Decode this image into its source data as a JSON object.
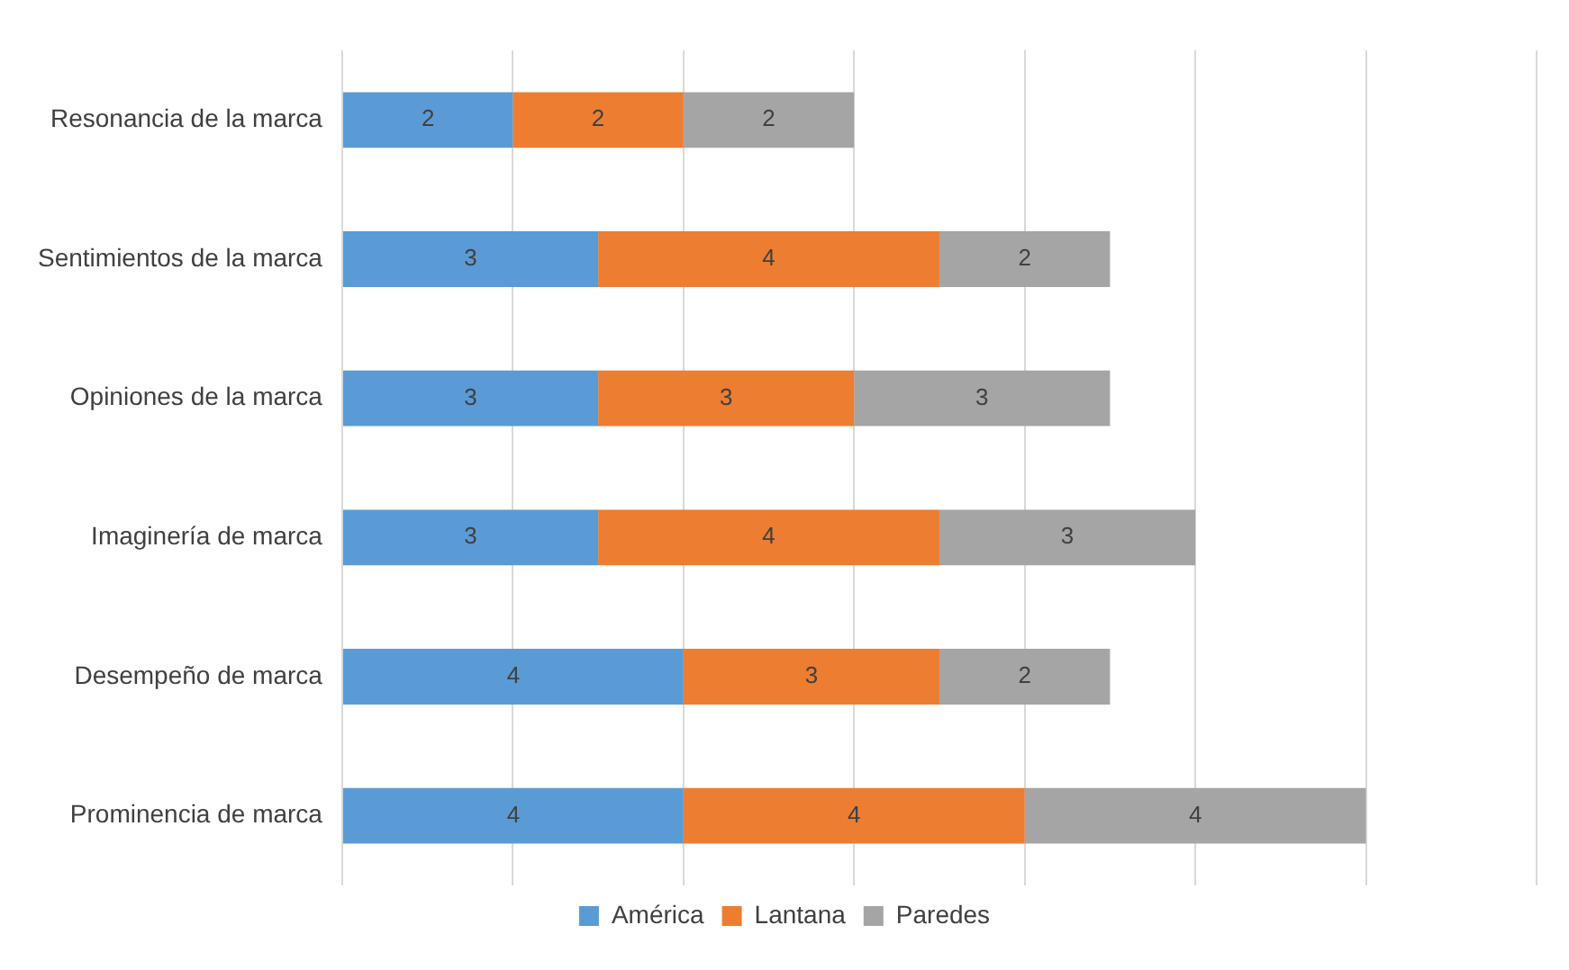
{
  "chart_data": {
    "type": "bar",
    "orientation": "horizontal",
    "stacked": true,
    "categories": [
      "Resonancia de la marca",
      "Sentimientos de la marca",
      "Opiniones de la marca",
      "Imaginería de marca",
      "Desempeño de marca",
      "Prominencia de marca"
    ],
    "series": [
      {
        "name": "América",
        "color": "#5b9bd5",
        "values": [
          2,
          3,
          3,
          3,
          4,
          4
        ]
      },
      {
        "name": "Lantana",
        "color": "#ed7d31",
        "values": [
          2,
          4,
          3,
          4,
          3,
          4
        ]
      },
      {
        "name": "Paredes",
        "color": "#a5a5a5",
        "values": [
          2,
          2,
          3,
          3,
          2,
          4
        ]
      }
    ],
    "xlim": [
      0,
      14
    ],
    "xticks": [
      {
        "value": 0,
        "label": null
      },
      {
        "value": 2,
        "label": null
      },
      {
        "value": 4,
        "label": null
      },
      {
        "value": 6,
        "label": null
      },
      {
        "value": 8,
        "label": null
      },
      {
        "value": 10,
        "label": null
      },
      {
        "value": 12,
        "label": null
      },
      {
        "value": 14,
        "label": null
      }
    ],
    "tick_labels": "y",
    "grid": "x",
    "legend": "bottom",
    "data_labels": true
  }
}
